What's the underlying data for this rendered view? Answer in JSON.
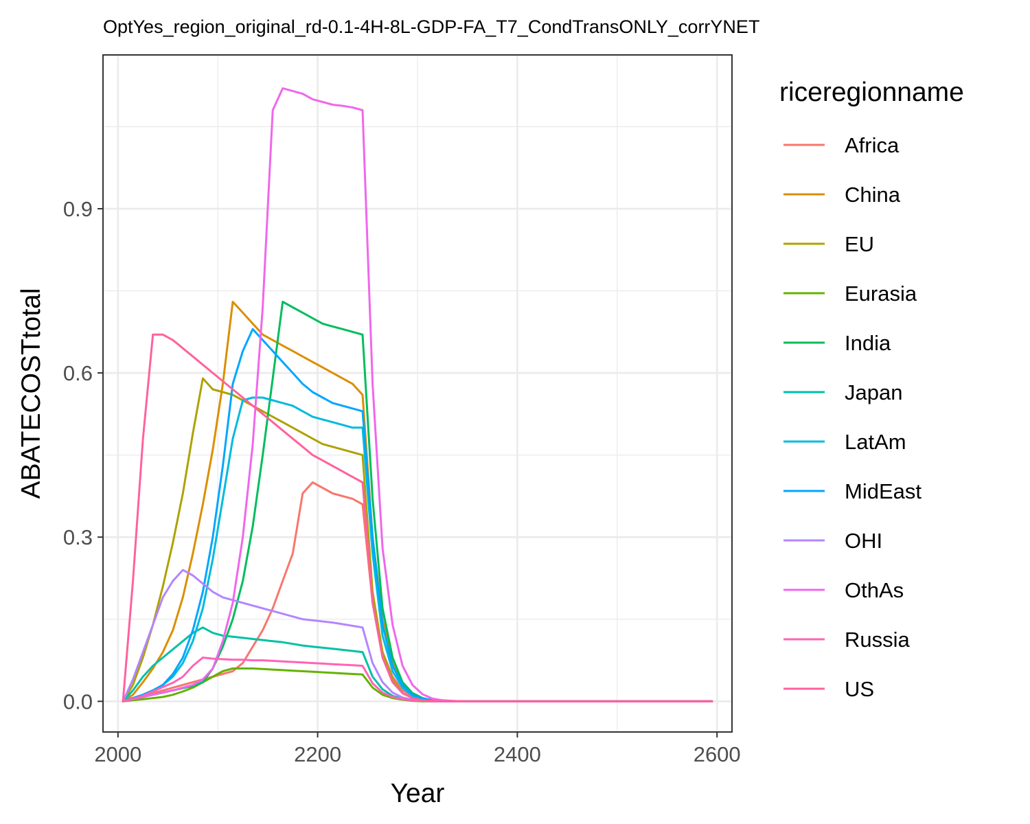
{
  "chart_data": {
    "type": "line",
    "title": "OptYes_region_original_rd-0.1-4H-8L-GDP-FA_T7_CondTransONLY_corrYNET",
    "xlabel": "Year",
    "ylabel": "ABATECOSTtotal",
    "xlim": [
      1985,
      2615
    ],
    "ylim": [
      -0.056,
      1.181
    ],
    "x_ticks": [
      2000,
      2200,
      2400,
      2600
    ],
    "x_tick_labels": [
      "2000",
      "2200",
      "2400",
      "2600"
    ],
    "y_ticks": [
      0.0,
      0.3,
      0.6,
      0.9
    ],
    "y_tick_labels": [
      "0.0",
      "0.3",
      "0.6",
      "0.9"
    ],
    "grid": true,
    "legend": {
      "title": "riceregionname",
      "position": "right"
    },
    "x": [
      2005,
      2015,
      2025,
      2035,
      2045,
      2055,
      2065,
      2075,
      2085,
      2095,
      2105,
      2115,
      2125,
      2135,
      2145,
      2155,
      2165,
      2175,
      2185,
      2195,
      2205,
      2215,
      2225,
      2235,
      2245,
      2255,
      2265,
      2275,
      2285,
      2295,
      2305,
      2315,
      2325,
      2335,
      2345,
      2355,
      2365,
      2375,
      2385,
      2395,
      2405,
      2415,
      2425,
      2435,
      2445,
      2455,
      2465,
      2475,
      2485,
      2495,
      2505,
      2515,
      2525,
      2535,
      2545,
      2555,
      2565,
      2575,
      2585,
      2595
    ],
    "series": [
      {
        "name": "Africa",
        "color": "#F8766D",
        "values": [
          0,
          0.005,
          0.01,
          0.015,
          0.02,
          0.025,
          0.03,
          0.035,
          0.04,
          0.045,
          0.05,
          0.055,
          0.07,
          0.1,
          0.13,
          0.17,
          0.22,
          0.27,
          0.38,
          0.4,
          0.39,
          0.38,
          0.375,
          0.37,
          0.36,
          0.18,
          0.09,
          0.045,
          0.02,
          0.01,
          0.005,
          0.002,
          0.001,
          0,
          0,
          0,
          0,
          0,
          0,
          0,
          0,
          0,
          0,
          0,
          0,
          0,
          0,
          0,
          0,
          0,
          0,
          0,
          0,
          0,
          0,
          0,
          0,
          0,
          0,
          0
        ]
      },
      {
        "name": "China",
        "color": "#DB8E00",
        "values": [
          0,
          0.012,
          0.035,
          0.06,
          0.09,
          0.13,
          0.19,
          0.27,
          0.36,
          0.46,
          0.58,
          0.73,
          0.71,
          0.69,
          0.67,
          0.66,
          0.65,
          0.64,
          0.63,
          0.62,
          0.61,
          0.6,
          0.59,
          0.58,
          0.56,
          0.3,
          0.15,
          0.07,
          0.03,
          0.012,
          0.005,
          0.002,
          0.001,
          0,
          0,
          0,
          0,
          0,
          0,
          0,
          0,
          0,
          0,
          0,
          0,
          0,
          0,
          0,
          0,
          0,
          0,
          0,
          0,
          0,
          0,
          0,
          0,
          0,
          0,
          0
        ]
      },
      {
        "name": "EU",
        "color": "#AEA200",
        "values": [
          0,
          0.03,
          0.08,
          0.14,
          0.21,
          0.29,
          0.38,
          0.49,
          0.59,
          0.57,
          0.565,
          0.56,
          0.55,
          0.54,
          0.53,
          0.52,
          0.51,
          0.5,
          0.49,
          0.48,
          0.47,
          0.465,
          0.46,
          0.455,
          0.45,
          0.2,
          0.09,
          0.04,
          0.015,
          0.006,
          0.002,
          0.001,
          0,
          0,
          0,
          0,
          0,
          0,
          0,
          0,
          0,
          0,
          0,
          0,
          0,
          0,
          0,
          0,
          0,
          0,
          0,
          0,
          0,
          0,
          0,
          0,
          0,
          0,
          0,
          0
        ]
      },
      {
        "name": "Eurasia",
        "color": "#64B200",
        "values": [
          0,
          0.002,
          0.004,
          0.006,
          0.008,
          0.012,
          0.018,
          0.025,
          0.035,
          0.045,
          0.055,
          0.06,
          0.06,
          0.06,
          0.059,
          0.058,
          0.057,
          0.056,
          0.055,
          0.054,
          0.053,
          0.052,
          0.051,
          0.05,
          0.049,
          0.025,
          0.012,
          0.006,
          0.003,
          0.001,
          0,
          0,
          0,
          0,
          0,
          0,
          0,
          0,
          0,
          0,
          0,
          0,
          0,
          0,
          0,
          0,
          0,
          0,
          0,
          0,
          0,
          0,
          0,
          0,
          0,
          0,
          0,
          0,
          0,
          0
        ]
      },
      {
        "name": "India",
        "color": "#00BD5C",
        "values": [
          0,
          0.004,
          0.008,
          0.012,
          0.016,
          0.02,
          0.024,
          0.028,
          0.035,
          0.06,
          0.1,
          0.15,
          0.22,
          0.32,
          0.45,
          0.59,
          0.73,
          0.72,
          0.71,
          0.7,
          0.69,
          0.685,
          0.68,
          0.675,
          0.67,
          0.37,
          0.17,
          0.08,
          0.035,
          0.015,
          0.006,
          0.002,
          0.001,
          0,
          0,
          0,
          0,
          0,
          0,
          0,
          0,
          0,
          0,
          0,
          0,
          0,
          0,
          0,
          0,
          0,
          0,
          0,
          0,
          0,
          0,
          0,
          0,
          0,
          0,
          0
        ]
      },
      {
        "name": "Japan",
        "color": "#00C1A7",
        "values": [
          0,
          0.02,
          0.045,
          0.065,
          0.08,
          0.095,
          0.11,
          0.125,
          0.135,
          0.125,
          0.12,
          0.118,
          0.116,
          0.114,
          0.112,
          0.11,
          0.108,
          0.105,
          0.102,
          0.1,
          0.098,
          0.096,
          0.094,
          0.092,
          0.09,
          0.045,
          0.022,
          0.01,
          0.005,
          0.002,
          0.001,
          0,
          0,
          0,
          0,
          0,
          0,
          0,
          0,
          0,
          0,
          0,
          0,
          0,
          0,
          0,
          0,
          0,
          0,
          0,
          0,
          0,
          0,
          0,
          0,
          0,
          0,
          0,
          0,
          0
        ]
      },
      {
        "name": "LatAm",
        "color": "#00BADE",
        "values": [
          0,
          0.006,
          0.012,
          0.02,
          0.03,
          0.045,
          0.07,
          0.11,
          0.17,
          0.26,
          0.37,
          0.48,
          0.55,
          0.555,
          0.555,
          0.55,
          0.545,
          0.54,
          0.53,
          0.52,
          0.515,
          0.51,
          0.505,
          0.5,
          0.5,
          0.27,
          0.12,
          0.055,
          0.025,
          0.01,
          0.004,
          0.001,
          0,
          0,
          0,
          0,
          0,
          0,
          0,
          0,
          0,
          0,
          0,
          0,
          0,
          0,
          0,
          0,
          0,
          0,
          0,
          0,
          0,
          0,
          0,
          0,
          0,
          0,
          0,
          0
        ]
      },
      {
        "name": "MidEast",
        "color": "#00A6FF",
        "values": [
          0,
          0.006,
          0.012,
          0.02,
          0.03,
          0.05,
          0.08,
          0.13,
          0.2,
          0.3,
          0.43,
          0.58,
          0.64,
          0.68,
          0.66,
          0.64,
          0.62,
          0.6,
          0.58,
          0.565,
          0.555,
          0.545,
          0.54,
          0.535,
          0.53,
          0.3,
          0.14,
          0.065,
          0.03,
          0.012,
          0.005,
          0.002,
          0.001,
          0,
          0,
          0,
          0,
          0,
          0,
          0,
          0,
          0,
          0,
          0,
          0,
          0,
          0,
          0,
          0,
          0,
          0,
          0,
          0,
          0,
          0,
          0,
          0,
          0,
          0,
          0
        ]
      },
      {
        "name": "OHI",
        "color": "#B385FF",
        "values": [
          0,
          0.04,
          0.09,
          0.14,
          0.19,
          0.22,
          0.24,
          0.23,
          0.215,
          0.2,
          0.19,
          0.185,
          0.18,
          0.175,
          0.17,
          0.165,
          0.16,
          0.155,
          0.15,
          0.148,
          0.146,
          0.144,
          0.141,
          0.138,
          0.135,
          0.07,
          0.035,
          0.016,
          0.007,
          0.003,
          0.001,
          0,
          0,
          0,
          0,
          0,
          0,
          0,
          0,
          0,
          0,
          0,
          0,
          0,
          0,
          0,
          0,
          0,
          0,
          0,
          0,
          0,
          0,
          0,
          0,
          0,
          0,
          0,
          0,
          0
        ]
      },
      {
        "name": "OthAs",
        "color": "#EF67EB",
        "values": [
          0,
          0.004,
          0.008,
          0.012,
          0.016,
          0.02,
          0.025,
          0.03,
          0.04,
          0.06,
          0.11,
          0.18,
          0.3,
          0.47,
          0.72,
          1.08,
          1.12,
          1.115,
          1.11,
          1.1,
          1.095,
          1.09,
          1.088,
          1.085,
          1.08,
          0.58,
          0.28,
          0.14,
          0.065,
          0.03,
          0.013,
          0.005,
          0.002,
          0.001,
          0,
          0,
          0,
          0,
          0,
          0,
          0,
          0,
          0,
          0,
          0,
          0,
          0,
          0,
          0,
          0,
          0,
          0,
          0,
          0,
          0,
          0,
          0,
          0,
          0,
          0
        ]
      },
      {
        "name": "Russia",
        "color": "#FF63B6",
        "values": [
          0,
          0.005,
          0.01,
          0.018,
          0.026,
          0.034,
          0.045,
          0.065,
          0.08,
          0.078,
          0.077,
          0.076,
          0.076,
          0.075,
          0.075,
          0.074,
          0.073,
          0.072,
          0.071,
          0.07,
          0.069,
          0.068,
          0.067,
          0.066,
          0.065,
          0.033,
          0.016,
          0.008,
          0.004,
          0.002,
          0.001,
          0,
          0,
          0,
          0,
          0,
          0,
          0,
          0,
          0,
          0,
          0,
          0,
          0,
          0,
          0,
          0,
          0,
          0,
          0,
          0,
          0,
          0,
          0,
          0,
          0,
          0,
          0,
          0,
          0
        ]
      },
      {
        "name": "US",
        "color": "#FF619C",
        "values": [
          0,
          0.22,
          0.48,
          0.67,
          0.67,
          0.66,
          0.645,
          0.63,
          0.615,
          0.6,
          0.585,
          0.57,
          0.555,
          0.54,
          0.525,
          0.51,
          0.495,
          0.48,
          0.465,
          0.45,
          0.44,
          0.43,
          0.42,
          0.41,
          0.4,
          0.18,
          0.08,
          0.035,
          0.015,
          0.006,
          0.002,
          0.001,
          0,
          0,
          0,
          0,
          0,
          0,
          0,
          0,
          0,
          0,
          0,
          0,
          0,
          0,
          0,
          0,
          0,
          0,
          0,
          0,
          0,
          0,
          0,
          0,
          0,
          0,
          0,
          0
        ]
      }
    ]
  }
}
